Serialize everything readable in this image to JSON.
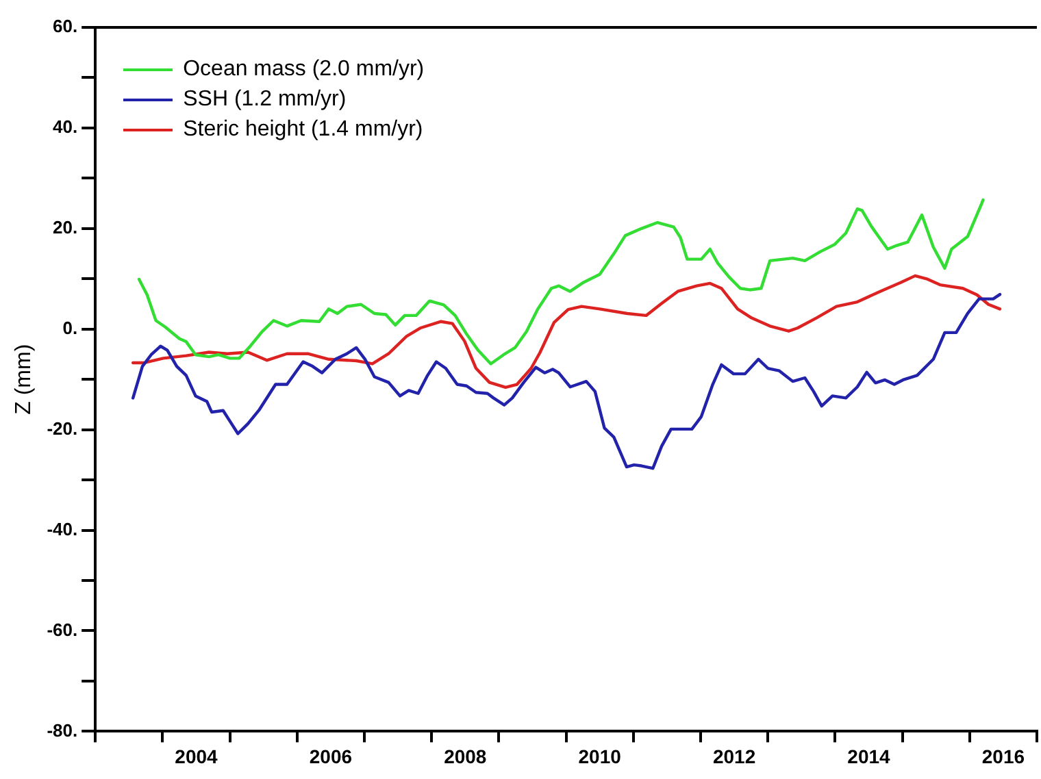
{
  "chart_data": {
    "type": "line",
    "ylabel": "Z (mm)",
    "xlim": [
      2003,
      2017
    ],
    "xticks": [
      {
        "value": 2003,
        "label": null
      },
      {
        "value": 2004,
        "label": null
      },
      {
        "value": 2004.5,
        "label": "2004"
      },
      {
        "value": 2005,
        "label": null
      },
      {
        "value": 2006,
        "label": null
      },
      {
        "value": 2006.5,
        "label": "2006"
      },
      {
        "value": 2007,
        "label": null
      },
      {
        "value": 2008,
        "label": null
      },
      {
        "value": 2008.5,
        "label": "2008"
      },
      {
        "value": 2009,
        "label": null
      },
      {
        "value": 2010,
        "label": null
      },
      {
        "value": 2010.5,
        "label": "2010"
      },
      {
        "value": 2011,
        "label": null
      },
      {
        "value": 2012,
        "label": null
      },
      {
        "value": 2012.5,
        "label": "2012"
      },
      {
        "value": 2013,
        "label": null
      },
      {
        "value": 2014,
        "label": null
      },
      {
        "value": 2014.5,
        "label": "2014"
      },
      {
        "value": 2015,
        "label": null
      },
      {
        "value": 2016,
        "label": null
      },
      {
        "value": 2016.5,
        "label": "2016"
      },
      {
        "value": 2017,
        "label": null
      }
    ],
    "ylim": [
      -80,
      60
    ],
    "yticks": [
      {
        "value": -80,
        "label": "-80."
      },
      {
        "value": -70,
        "label": null
      },
      {
        "value": -60,
        "label": "-60."
      },
      {
        "value": -50,
        "label": null
      },
      {
        "value": -40,
        "label": "-40."
      },
      {
        "value": -30,
        "label": null
      },
      {
        "value": -20,
        "label": "-20."
      },
      {
        "value": -10,
        "label": null
      },
      {
        "value": 0,
        "label": "0."
      },
      {
        "value": 10,
        "label": null
      },
      {
        "value": 20,
        "label": "20."
      },
      {
        "value": 30,
        "label": null
      },
      {
        "value": 40,
        "label": "40."
      },
      {
        "value": 50,
        "label": null
      },
      {
        "value": 60,
        "label": "60."
      }
    ],
    "grid": false,
    "legend": "top left",
    "marker": "none",
    "line_style": "solid",
    "series": [
      {
        "name": "Ocean mass (2.0 mm/yr)",
        "color": "#33dd33",
        "x": [
          2003.65,
          2003.77,
          2003.9,
          2004.04,
          2004.25,
          2004.35,
          2004.49,
          2004.69,
          2004.83,
          2005.0,
          2005.14,
          2005.31,
          2005.48,
          2005.65,
          2005.85,
          2006.06,
          2006.33,
          2006.47,
          2006.6,
          2006.74,
          2006.95,
          2007.15,
          2007.32,
          2007.46,
          2007.6,
          2007.77,
          2007.97,
          2008.18,
          2008.35,
          2008.52,
          2008.69,
          2008.88,
          2009.07,
          2009.24,
          2009.41,
          2009.58,
          2009.78,
          2009.89,
          2010.06,
          2010.26,
          2010.5,
          2010.71,
          2010.88,
          2011.12,
          2011.36,
          2011.6,
          2011.7,
          2011.8,
          2012.01,
          2012.14,
          2012.25,
          2012.42,
          2012.59,
          2012.73,
          2012.9,
          2013.03,
          2013.37,
          2013.55,
          2013.78,
          2013.99,
          2014.16,
          2014.33,
          2014.4,
          2014.54,
          2014.78,
          2014.91,
          2015.08,
          2015.29,
          2015.46,
          2015.63,
          2015.73,
          2015.97,
          2016.18,
          2016.2
        ],
        "values": [
          9.9,
          6.8,
          1.7,
          0.4,
          -1.9,
          -2.5,
          -5.1,
          -5.5,
          -5.1,
          -5.8,
          -5.8,
          -3.3,
          -0.5,
          1.7,
          0.6,
          1.7,
          1.5,
          4.0,
          3.1,
          4.5,
          4.9,
          3.1,
          2.9,
          0.8,
          2.7,
          2.7,
          5.6,
          4.8,
          2.7,
          -1.0,
          -4.2,
          -6.9,
          -5.1,
          -3.7,
          -0.5,
          4.0,
          8.1,
          8.6,
          7.5,
          9.3,
          10.9,
          15.0,
          18.6,
          20.0,
          21.2,
          20.3,
          18.2,
          13.9,
          13.9,
          15.9,
          13.2,
          10.4,
          8.1,
          7.8,
          8.1,
          13.6,
          14.1,
          13.6,
          15.4,
          16.8,
          19.1,
          23.9,
          23.6,
          20.4,
          15.9,
          16.6,
          17.3,
          22.7,
          16.3,
          12.1,
          15.9,
          18.4,
          25.0,
          25.7
        ]
      },
      {
        "name": "SSH (1.2 mm/yr)",
        "color": "#2222aa",
        "x": [
          2003.56,
          2003.7,
          2003.83,
          2003.97,
          2004.07,
          2004.21,
          2004.35,
          2004.49,
          2004.66,
          2004.73,
          2004.9,
          2005.0,
          2005.12,
          2005.27,
          2005.44,
          2005.68,
          2005.85,
          2006.09,
          2006.23,
          2006.37,
          2006.57,
          2006.74,
          2006.88,
          2007.01,
          2007.15,
          2007.36,
          2007.53,
          2007.66,
          2007.8,
          2007.94,
          2008.07,
          2008.21,
          2008.38,
          2008.52,
          2008.66,
          2008.83,
          2008.92,
          2009.08,
          2009.2,
          2009.37,
          2009.55,
          2009.68,
          2009.8,
          2009.89,
          2010.06,
          2010.3,
          2010.43,
          2010.57,
          2010.71,
          2010.9,
          2011.01,
          2011.12,
          2011.29,
          2011.42,
          2011.56,
          2011.87,
          2012.01,
          2012.18,
          2012.31,
          2012.49,
          2012.66,
          2012.86,
          2013.0,
          2013.17,
          2013.37,
          2013.55,
          2013.68,
          2013.8,
          2013.96,
          2014.16,
          2014.33,
          2014.47,
          2014.6,
          2014.74,
          2014.88,
          2015.01,
          2015.22,
          2015.46,
          2015.63,
          2015.8,
          2015.97,
          2016.14,
          2016.35,
          2016.45
        ],
        "values": [
          -13.7,
          -7.4,
          -5.1,
          -3.4,
          -4.2,
          -7.4,
          -9.2,
          -13.3,
          -14.4,
          -16.5,
          -16.2,
          -18.3,
          -20.8,
          -18.8,
          -16.0,
          -11.0,
          -11.0,
          -6.5,
          -7.4,
          -8.7,
          -6.0,
          -4.9,
          -3.7,
          -6.0,
          -9.5,
          -10.6,
          -13.3,
          -12.2,
          -12.8,
          -9.2,
          -6.5,
          -7.8,
          -11.0,
          -11.3,
          -12.6,
          -12.8,
          -13.7,
          -15.1,
          -13.7,
          -10.6,
          -7.6,
          -8.7,
          -8.0,
          -8.7,
          -11.5,
          -10.4,
          -12.4,
          -19.7,
          -21.5,
          -27.4,
          -27.0,
          -27.2,
          -27.7,
          -23.3,
          -19.9,
          -19.9,
          -17.4,
          -11.0,
          -7.1,
          -8.9,
          -8.9,
          -6.0,
          -7.8,
          -8.3,
          -10.4,
          -9.7,
          -12.4,
          -15.3,
          -13.3,
          -13.7,
          -11.5,
          -8.6,
          -10.7,
          -10.1,
          -11.0,
          -10.1,
          -9.2,
          -6.0,
          -0.7,
          -0.7,
          3.1,
          6.0,
          6.0,
          6.9
        ]
      },
      {
        "name": "Steric height (1.4 mm/yr)",
        "color": "#dd2222",
        "x": [
          2003.56,
          2003.73,
          2004.01,
          2004.35,
          2004.69,
          2004.96,
          2005.27,
          2005.55,
          2005.85,
          2006.16,
          2006.47,
          2006.88,
          2007.12,
          2007.36,
          2007.63,
          2007.83,
          2008.14,
          2008.31,
          2008.49,
          2008.66,
          2008.86,
          2009.1,
          2009.27,
          2009.48,
          2009.61,
          2009.82,
          2010.03,
          2010.23,
          2010.5,
          2010.91,
          2011.19,
          2011.42,
          2011.66,
          2011.94,
          2012.14,
          2012.31,
          2012.55,
          2012.76,
          2013.03,
          2013.31,
          2013.44,
          2013.72,
          2014.02,
          2014.33,
          2014.67,
          2014.98,
          2015.19,
          2015.36,
          2015.56,
          2015.9,
          2016.11,
          2016.28,
          2016.45
        ],
        "values": [
          -6.7,
          -6.7,
          -5.8,
          -5.3,
          -4.6,
          -4.9,
          -4.6,
          -6.2,
          -4.9,
          -4.9,
          -6.0,
          -6.3,
          -6.9,
          -4.9,
          -1.4,
          0.2,
          1.5,
          1.1,
          -2.4,
          -7.8,
          -10.6,
          -11.6,
          -11.0,
          -7.8,
          -4.7,
          1.3,
          3.9,
          4.5,
          4.0,
          3.1,
          2.7,
          5.1,
          7.5,
          8.6,
          9.1,
          8.1,
          4.0,
          2.2,
          0.6,
          -0.4,
          0.2,
          2.2,
          4.5,
          5.4,
          7.5,
          9.3,
          10.6,
          10.0,
          8.8,
          8.1,
          6.8,
          4.9,
          4.0
        ]
      }
    ]
  }
}
